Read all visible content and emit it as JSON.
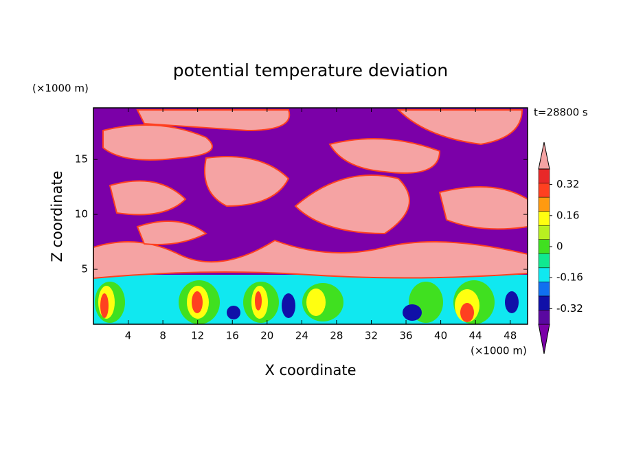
{
  "chart_data": {
    "type": "contour",
    "title": "potential temperature deviation",
    "x_label": "X coordinate",
    "y_label": "Z coordinate",
    "x_unit": "(×1000 m)",
    "y_unit": "(×1000 m)",
    "time_label": "t=28800 s",
    "xlim": [
      0,
      50
    ],
    "xticks": [
      4,
      8,
      12,
      16,
      20,
      24,
      28,
      32,
      36,
      40,
      44,
      48
    ],
    "ylim": [
      0,
      19.7
    ],
    "yticks": [
      5,
      10,
      15
    ],
    "colorbar": {
      "clim": [
        -0.4,
        0.4
      ],
      "colors": [
        "#7b00a8",
        "#5a08a0",
        "#1010a8",
        "#1070f0",
        "#10e8f0",
        "#10e890",
        "#40e020",
        "#b8f020",
        "#ffff10",
        "#ff9a10",
        "#ff4020",
        "#e82828",
        "#f5a3a3"
      ],
      "ticks": [
        -0.32,
        -0.16,
        0,
        0.16,
        0.32
      ]
    }
  }
}
